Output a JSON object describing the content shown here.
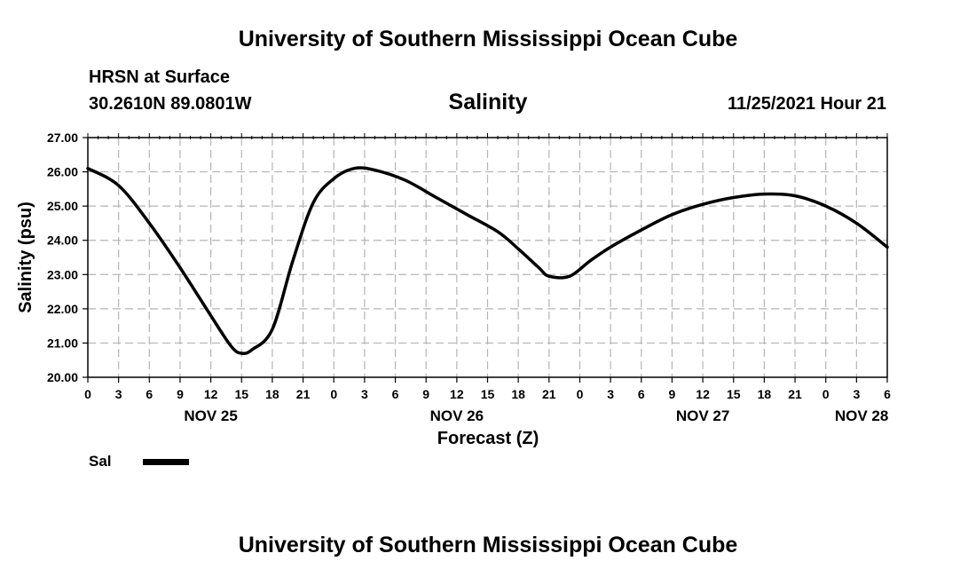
{
  "header": {
    "title": "University of Southern Mississippi Ocean Cube",
    "station": "HRSN at Surface",
    "coords": "30.2610N  89.0801W",
    "variable": "Salinity",
    "issued": "11/25/2021 Hour 21"
  },
  "footer": {
    "title": "University of Southern Mississippi Ocean Cube"
  },
  "legend": {
    "label": "Sal",
    "color": "#000000"
  },
  "chart_data": {
    "type": "line",
    "title": "Salinity",
    "xlabel": "Forecast (Z)",
    "ylabel": "Salinity (psu)",
    "ylim": [
      20.0,
      27.0
    ],
    "xlim": [
      0,
      78
    ],
    "x_unit": "hours since NOV 25 00Z",
    "y_ticks": [
      "20.00",
      "21.00",
      "22.00",
      "23.00",
      "24.00",
      "25.00",
      "26.00",
      "27.00"
    ],
    "x_tick_labels": [
      "0",
      "3",
      "6",
      "9",
      "12",
      "15",
      "18",
      "21",
      "0",
      "3",
      "6",
      "9",
      "12",
      "15",
      "18",
      "21",
      "0",
      "3",
      "6",
      "9",
      "12",
      "15",
      "18",
      "21",
      "0",
      "3",
      "6"
    ],
    "day_labels": [
      {
        "label": "NOV 25",
        "hour": 12
      },
      {
        "label": "NOV 26",
        "hour": 36
      },
      {
        "label": "NOV 27",
        "hour": 60
      },
      {
        "label": "NOV 28",
        "hour": 75.5
      }
    ],
    "grid": true,
    "series": [
      {
        "name": "Sal",
        "x": [
          0,
          3,
          6,
          9,
          12,
          14,
          15,
          16,
          18,
          20,
          22,
          24,
          26,
          28,
          31,
          34,
          37,
          40,
          42,
          44,
          45,
          47,
          49,
          51,
          54,
          57,
          60,
          63,
          66,
          69,
          72,
          75,
          78
        ],
        "values": [
          26.1,
          25.6,
          24.5,
          23.2,
          21.8,
          20.9,
          20.7,
          20.8,
          21.4,
          23.4,
          25.1,
          25.8,
          26.1,
          26.05,
          25.75,
          25.25,
          24.75,
          24.25,
          23.75,
          23.2,
          22.95,
          22.95,
          23.4,
          23.8,
          24.3,
          24.75,
          25.05,
          25.25,
          25.35,
          25.3,
          25.0,
          24.5,
          23.8
        ]
      }
    ]
  }
}
